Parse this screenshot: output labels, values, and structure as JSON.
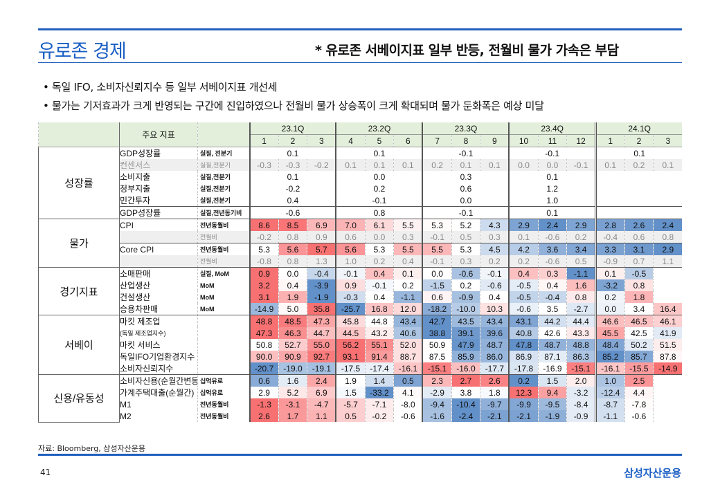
{
  "header": {
    "title": "유로존 경제",
    "subtitle": "* 유로존 서베이지표 일부 반등, 전월비 물가 가속은 부담"
  },
  "bullets": [
    "• 독일 IFO, 소비자신뢰지수 등 일부 서베이지표 개선세",
    "• 물가는 기저효과가 크게 반영되는 구간에 진입하였으나 전월비 물가 상승폭이 크게 확대되며 물가 둔화폭은 예상 미달"
  ],
  "table": {
    "indicator_header": "주요 지표",
    "quarters": [
      "23.1Q",
      "23.2Q",
      "23.3Q",
      "23.4Q",
      "24.1Q"
    ],
    "months": [
      "1",
      "2",
      "3",
      "4",
      "5",
      "6",
      "7",
      "8",
      "9",
      "10",
      "11",
      "12",
      "1",
      "2",
      "3"
    ],
    "groups": [
      {
        "label": "성장률",
        "rows": [
          {
            "name": "GDP성장률",
            "unit": "실질, 전분기",
            "quarterly": true,
            "values": [
              "0.1",
              "0.1",
              "-0.1",
              "-0.1",
              "0.1"
            ]
          },
          {
            "name": "컨센서스",
            "unit": "실질,전분기",
            "sub": true,
            "values": [
              "-0.3",
              "-0.3",
              "-0.2",
              "0.1",
              "0.1",
              "0.1",
              "0.2",
              "0.1",
              "0.1",
              "0.0",
              "0.0",
              "-0.1",
              "0.1",
              "0.2",
              "0.1"
            ]
          },
          {
            "name": "소비지출",
            "unit": "실질,전분기",
            "quarterly": true,
            "values": [
              "0.1",
              "0.0",
              "0.3",
              "0.1",
              ""
            ]
          },
          {
            "name": "정부지출",
            "unit": "실질,전분기",
            "quarterly": true,
            "values": [
              "-0.2",
              "0.2",
              "0.6",
              "1.2",
              ""
            ]
          },
          {
            "name": "민간투자",
            "unit": "실질,전분기",
            "quarterly": true,
            "values": [
              "0.4",
              "-0.1",
              "0.0",
              "1.0",
              ""
            ]
          },
          {
            "name": "GDP성장률",
            "unit": "실질,전년동기비",
            "quarterly": true,
            "top": true,
            "values": [
              "-0.6",
              "0.8",
              "-0.1",
              "0.1",
              ""
            ]
          }
        ]
      },
      {
        "label": "물가",
        "rows": [
          {
            "name": "CPI",
            "unit": "전년동월비",
            "heat": true,
            "values": [
              "8.6",
              "8.5",
              "6.9",
              "7.0",
              "6.1",
              "5.5",
              "5.3",
              "5.2",
              "4.3",
              "2.9",
              "2.4",
              "2.9",
              "2.8",
              "2.6",
              "2.4"
            ]
          },
          {
            "name": "",
            "unit": "전월비",
            "sub": true,
            "values": [
              "-0.2",
              "0.8",
              "0.9",
              "0.6",
              "0.0",
              "0.3",
              "-0.1",
              "0.5",
              "0.3",
              "0.1",
              "-0.6",
              "0.2",
              "-0.4",
              "0.6",
              "0.8"
            ]
          },
          {
            "name": "Core CPI",
            "unit": "전년동월비",
            "heat": true,
            "top": true,
            "values": [
              "5.3",
              "5.6",
              "5.7",
              "5.6",
              "5.3",
              "5.5",
              "5.5",
              "5.3",
              "4.5",
              "4.2",
              "3.6",
              "3.4",
              "3.3",
              "3.1",
              "2.9"
            ]
          },
          {
            "name": "",
            "unit": "전월비",
            "sub": true,
            "values": [
              "-0.8",
              "0.8",
              "1.3",
              "1.0",
              "0.2",
              "0.4",
              "-0.1",
              "0.3",
              "0.2",
              "0.2",
              "-0.6",
              "0.5",
              "-0.9",
              "0.7",
              "1.1"
            ]
          }
        ]
      },
      {
        "label": "경기지표",
        "rows": [
          {
            "name": "소매판매",
            "unit": "실질, MoM",
            "heat": true,
            "values": [
              "0.9",
              "0.0",
              "-0.4",
              "-0.1",
              "0.4",
              "0.1",
              "0.0",
              "-0.6",
              "-0.1",
              "0.4",
              "0.3",
              "-1.1",
              "0.1",
              "-0.5",
              ""
            ]
          },
          {
            "name": "산업생산",
            "unit": "MoM",
            "heat": true,
            "values": [
              "3.2",
              "0.4",
              "-3.9",
              "0.9",
              "-0.1",
              "0.2",
              "-1.5",
              "0.2",
              "-0.6",
              "-0.5",
              "0.4",
              "1.6",
              "-3.2",
              "0.8",
              ""
            ]
          },
          {
            "name": "건설생산",
            "unit": "MoM",
            "heat": true,
            "values": [
              "3.1",
              "1.9",
              "-1.9",
              "-0.3",
              "0.4",
              "-1.1",
              "0.6",
              "-0.9",
              "0.4",
              "-0.5",
              "-0.4",
              "0.8",
              "0.2",
              "1.8",
              ""
            ]
          },
          {
            "name": "승용차판매",
            "unit": "MoM",
            "heat": true,
            "values": [
              "-14.9",
              "5.0",
              "35.8",
              "-25.7",
              "16.8",
              "12.0",
              "-18.2",
              "-10.0",
              "10.3",
              "-0.6",
              "3.5",
              "-2.7",
              "0.0",
              "3.4",
              "16.4"
            ]
          }
        ]
      },
      {
        "label": "서베이",
        "rows": [
          {
            "name": "마킷 제조업",
            "unit": "",
            "heat": true,
            "values": [
              "48.8",
              "48.5",
              "47.3",
              "45.8",
              "44.8",
              "43.4",
              "42.7",
              "43.5",
              "43.4",
              "43.1",
              "44.2",
              "44.4",
              "46.6",
              "46.5",
              "46.1"
            ]
          },
          {
            "name": "(독일 제조업지수)",
            "unit": "",
            "heat": true,
            "small": true,
            "values": [
              "47.3",
              "46.3",
              "44.7",
              "44.5",
              "43.2",
              "40.6",
              "38.8",
              "39.1",
              "39.6",
              "40.8",
              "42.6",
              "43.3",
              "45.5",
              "42.5",
              "41.9"
            ]
          },
          {
            "name": "마킷 서비스",
            "unit": "",
            "heat": true,
            "values": [
              "50.8",
              "52.7",
              "55.0",
              "56.2",
              "55.1",
              "52.0",
              "50.9",
              "47.9",
              "48.7",
              "47.8",
              "48.7",
              "48.8",
              "48.4",
              "50.2",
              "51.5"
            ]
          },
          {
            "name": "독일IFO기업환경지수",
            "unit": "",
            "heat": true,
            "values": [
              "90.0",
              "90.9",
              "92.7",
              "93.1",
              "91.4",
              "88.7",
              "87.5",
              "85.9",
              "86.0",
              "86.9",
              "87.1",
              "86.3",
              "85.2",
              "85.7",
              "87.8"
            ]
          },
          {
            "name": "소비자신뢰지수",
            "unit": "",
            "heat": true,
            "values": [
              "-20.7",
              "-19.0",
              "-19.1",
              "-17.5",
              "-17.4",
              "-16.1",
              "-15.1",
              "-16.0",
              "-17.7",
              "-17.8",
              "-16.9",
              "-15.1",
              "-16.1",
              "-15.5",
              "-14.9"
            ]
          }
        ]
      },
      {
        "label": "신용/유동성",
        "rows": [
          {
            "name": "소비자신용(순월간변동)",
            "unit": "십억유로",
            "heat": true,
            "values": [
              "0.6",
              "1.6",
              "2.4",
              "1.9",
              "1.4",
              "0.5",
              "2.3",
              "2.7",
              "2.6",
              "0.2",
              "1.5",
              "2.0",
              "1.0",
              "2.5",
              ""
            ]
          },
          {
            "name": "가계주택대출(순월간)",
            "unit": "십억유로",
            "heat": true,
            "values": [
              "2.9",
              "5.2",
              "6.9",
              "1.5",
              "-33.2",
              "4.1",
              "-2.9",
              "3.8",
              "1.8",
              "12.3",
              "9.4",
              "-3.2",
              "-12.4",
              "4.4",
              ""
            ]
          },
          {
            "name": "M1",
            "unit": "전년동월비",
            "heat": true,
            "values": [
              "-1.3",
              "-3.1",
              "-4.7",
              "-5.7",
              "-7.1",
              "-8.0",
              "-9.4",
              "-10.4",
              "-9.7",
              "-9.9",
              "-9.5",
              "-8.4",
              "-8.7",
              "-7.8",
              ""
            ]
          },
          {
            "name": "M2",
            "unit": "전년동월비",
            "heat": true,
            "values": [
              "2.6",
              "1.7",
              "1.1",
              "0.5",
              "-0.2",
              "-0.6",
              "-1.6",
              "-2.4",
              "-2.1",
              "-2.1",
              "-1.9",
              "-0.9",
              "-1.1",
              "-0.6",
              ""
            ]
          }
        ]
      }
    ]
  },
  "source": "자료: Bloomberg, 삼성자산운용",
  "page_number": "41",
  "brand": "삼성자산운용",
  "colors": {
    "accent": "#1a5fc4",
    "high": "#f8696b",
    "low": "#5a8ac6",
    "header_bg": "#e3efdb"
  }
}
